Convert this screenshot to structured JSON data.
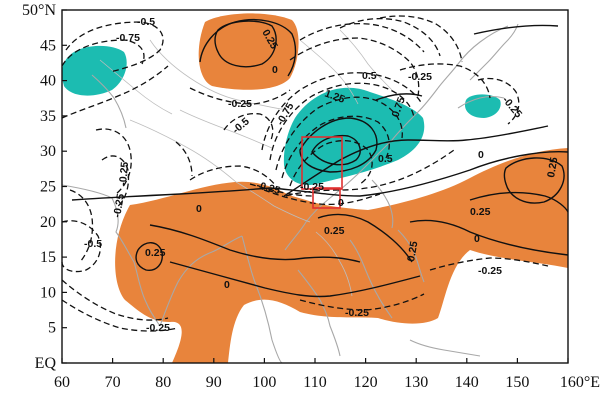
{
  "map": {
    "colors": {
      "positive_fill": "#e8843c",
      "negative_fill": "#1cbcb1",
      "contour": "#111111",
      "coastline": "#a8a8a8",
      "box": "#e03030"
    },
    "x_ticks": [
      "60",
      "70",
      "80",
      "90",
      "100",
      "110",
      "120",
      "130",
      "140",
      "150",
      "160°E"
    ],
    "y_ticks": [
      "EQ",
      "5",
      "10",
      "15",
      "20",
      "25",
      "30",
      "35",
      "40",
      "45",
      "50°N"
    ],
    "contour_labels": [
      "-0.5",
      "-0.75",
      "0.25",
      "0",
      "-0.25",
      "-0.5",
      "0.5",
      "1.25",
      "-0.75",
      "0.75",
      "-0.25",
      "-0.25",
      "-0.25",
      "0.5",
      "0",
      "-0.25",
      "-0.25",
      "0",
      "0.25",
      "0.25",
      "0",
      "0.25",
      "0.25",
      "0",
      "-0.5",
      "0.25",
      "-0.25",
      "-0.25",
      "-0.25",
      "0",
      "-0.25"
    ]
  }
}
